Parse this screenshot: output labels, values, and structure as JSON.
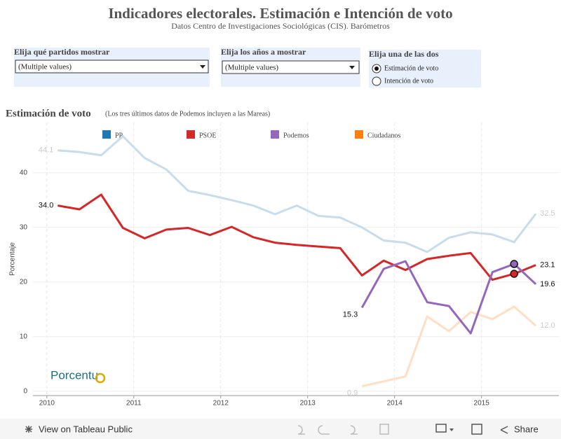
{
  "header": {
    "title": "Indicadores electorales. Estimación e Intención de voto",
    "subtitle": "Datos Centro de Investigaciones Sociológicas (CIS). Barómetros"
  },
  "filters": [
    {
      "label": "Elija qué partidos mostrar",
      "value": "(Multiple values)"
    },
    {
      "label": "Elija los años a mostrar",
      "value": "(Multiple values)"
    },
    {
      "label": "Elija una de las dos",
      "options": [
        "Estimación de voto",
        "Intención de voto"
      ],
      "selected": 0
    }
  ],
  "chart_data": {
    "type": "line",
    "title": "Estimación de voto",
    "subtitle": "(Los tres últimos datos de Podemos incluyen a las Mareas)",
    "y_label": "Porcentaje",
    "logo": "Porcentu",
    "x": [
      2010.125,
      2010.375,
      2010.625,
      2010.875,
      2011.125,
      2011.375,
      2011.625,
      2011.875,
      2012.125,
      2012.375,
      2012.625,
      2012.875,
      2013.125,
      2013.375,
      2013.625,
      2013.875,
      2014.125,
      2014.375,
      2014.625,
      2014.875,
      2015.125,
      2015.375,
      2015.625
    ],
    "xlim": [
      2009.84,
      2015.89
    ],
    "xticks": [
      2010,
      2011,
      2012,
      2013,
      2014,
      2015
    ],
    "ylim": [
      -0.8,
      49.2
    ],
    "yticks": [
      0,
      10,
      20,
      30,
      40
    ],
    "grid": true,
    "highlighted": [
      "PSOE",
      "Podemos"
    ],
    "series": [
      {
        "name": "PP",
        "color": "#1f77b4",
        "values": [
          44.1,
          43.8,
          43.2,
          46.7,
          42.7,
          40.6,
          36.7,
          35.9,
          35.0,
          34.0,
          32.4,
          34.0,
          32.1,
          31.8,
          30.0,
          27.6,
          27.2,
          25.5,
          28.1,
          29.1,
          28.7,
          27.3,
          32.5
        ],
        "value_labels": [
          "44.1",
          null,
          null,
          null,
          null,
          null,
          null,
          null,
          null,
          null,
          null,
          null,
          null,
          null,
          null,
          null,
          null,
          null,
          null,
          null,
          null,
          null,
          "32.5"
        ]
      },
      {
        "name": "PSOE",
        "color": "#d62728",
        "values": [
          34.0,
          33.3,
          36.0,
          29.9,
          28.0,
          29.6,
          29.9,
          28.6,
          30.1,
          28.2,
          27.2,
          26.8,
          26.5,
          26.2,
          21.2,
          23.9,
          22.2,
          24.2,
          24.8,
          25.3,
          20.4,
          21.5,
          23.1
        ],
        "value_labels": [
          "34.0",
          null,
          null,
          null,
          null,
          null,
          null,
          null,
          null,
          null,
          null,
          null,
          null,
          null,
          null,
          null,
          null,
          null,
          null,
          null,
          null,
          null,
          "23.1"
        ]
      },
      {
        "name": "Podemos",
        "color": "#9467bd",
        "values": [
          null,
          null,
          null,
          null,
          null,
          null,
          null,
          null,
          null,
          null,
          null,
          null,
          null,
          null,
          15.3,
          22.4,
          23.8,
          16.3,
          15.6,
          10.6,
          21.8,
          23.3,
          19.6
        ],
        "value_labels": [
          null,
          null,
          null,
          null,
          null,
          null,
          null,
          null,
          null,
          null,
          null,
          null,
          null,
          null,
          "15.3",
          null,
          null,
          null,
          null,
          null,
          null,
          null,
          "19.6"
        ]
      },
      {
        "name": "Ciudadanos",
        "color": "#ff7f0e",
        "values": [
          null,
          null,
          null,
          null,
          null,
          null,
          null,
          null,
          null,
          null,
          null,
          null,
          null,
          null,
          0.9,
          1.8,
          2.7,
          13.7,
          11.0,
          14.5,
          13.2,
          15.5,
          12.0
        ],
        "value_labels": [
          null,
          null,
          null,
          null,
          null,
          null,
          null,
          null,
          null,
          null,
          null,
          null,
          null,
          null,
          "0.9",
          null,
          null,
          null,
          null,
          null,
          null,
          null,
          "12.0"
        ]
      }
    ],
    "selected_index": 21
  },
  "toolbar": {
    "view": "View on Tableau Public",
    "share": "Share"
  }
}
